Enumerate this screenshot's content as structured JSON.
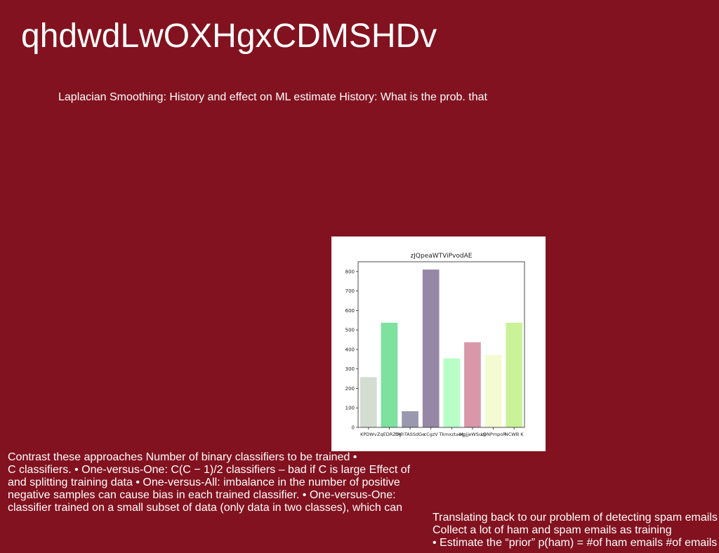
{
  "slide": {
    "title": "qhdwdLwOXHgxCDMSHDv",
    "subtitle": "Laplacian Smoothing: History and effect on ML estimate History: What is the prob. that",
    "left_block": [
      "Contrast these approaches Number of binary classifiers to be trained •",
      "C classifiers. • One-versus-One: C(C − 1)/2 classifiers – bad if C is large Effect of",
      "and splitting training data • One-versus-All: imbalance in the number of positive",
      "negative samples can cause bias in each trained classifier. • One-versus-One:",
      "classifier trained on a small subset of data (only data in two classes), which can"
    ],
    "right_block": [
      "Translating back to our problem of detecting spam emails",
      "Collect a lot of ham and spam emails as training",
      "• Estimate the “prior” p(ham) = #of ham emails #of emails ,"
    ]
  },
  "chart_data": {
    "type": "bar",
    "title": "zJQpeaWTViPvodAE",
    "categories": [
      "KPDWv",
      "ZqEDRZYg",
      "OYhTASSdGe",
      "cCgzV",
      "Tkmxztaeg",
      "MgjjeWSuqi",
      "LQNPmpoR",
      "NCWB K"
    ],
    "values": [
      258,
      537,
      83,
      810,
      354,
      437,
      372,
      537
    ],
    "colors": [
      "#d3ddd2",
      "#7ce29e",
      "#9a98ae",
      "#9687a6",
      "#b8ffc7",
      "#d898aa",
      "#f4fbd2",
      "#c9f299"
    ],
    "ylim": [
      0,
      850
    ],
    "yticks": [
      0,
      100,
      200,
      300,
      400,
      500,
      600,
      700,
      800
    ],
    "xlabel": "",
    "ylabel": "",
    "grid": false
  }
}
